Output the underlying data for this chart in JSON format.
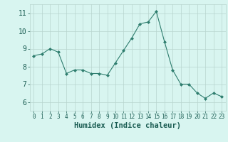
{
  "x": [
    0,
    1,
    2,
    3,
    4,
    5,
    6,
    7,
    8,
    9,
    10,
    11,
    12,
    13,
    14,
    15,
    16,
    17,
    18,
    19,
    20,
    21,
    22,
    23
  ],
  "y": [
    8.6,
    8.7,
    9.0,
    8.8,
    7.6,
    7.8,
    7.8,
    7.6,
    7.6,
    7.5,
    8.2,
    8.9,
    9.6,
    10.4,
    10.5,
    11.1,
    9.4,
    7.8,
    7.0,
    7.0,
    6.5,
    6.2,
    6.5,
    6.3
  ],
  "xlabel": "Humidex (Indice chaleur)",
  "ylim": [
    5.5,
    11.5
  ],
  "xlim": [
    -0.5,
    23.5
  ],
  "yticks": [
    6,
    7,
    8,
    9,
    10,
    11
  ],
  "xticks": [
    0,
    1,
    2,
    3,
    4,
    5,
    6,
    7,
    8,
    9,
    10,
    11,
    12,
    13,
    14,
    15,
    16,
    17,
    18,
    19,
    20,
    21,
    22,
    23
  ],
  "line_color": "#2e7d6e",
  "marker_color": "#2e7d6e",
  "bg_color": "#d8f5f0",
  "grid_color": "#b8d4ce",
  "axis_bg": "#d8f5f0",
  "xlabel_color": "#1a5c52",
  "tick_color": "#1a5c52",
  "xlabel_fontsize": 7.5,
  "ytick_fontsize": 7,
  "xtick_fontsize": 5.5
}
